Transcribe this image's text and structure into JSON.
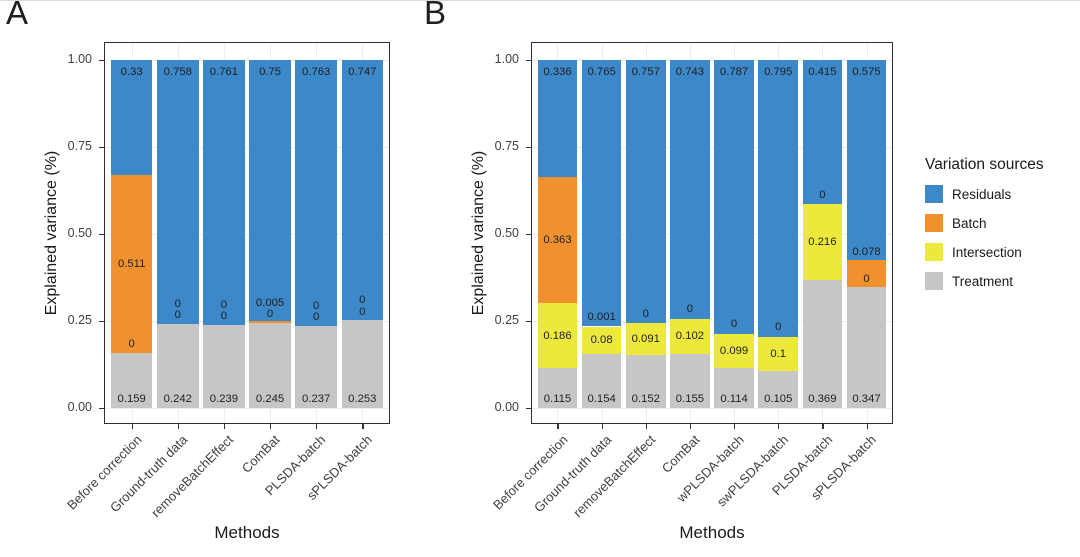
{
  "figure": {
    "legend": {
      "title": "Variation sources",
      "items": [
        {
          "label": "Residuals",
          "color": "#3D88C8"
        },
        {
          "label": "Batch",
          "color": "#F0912E"
        },
        {
          "label": "Intersection",
          "color": "#ECE93C"
        },
        {
          "label": "Treatment",
          "color": "#C6C6C6"
        }
      ]
    }
  },
  "colors": {
    "Residuals": "#3D88C8",
    "Batch": "#F0912E",
    "Intersection": "#ECE93C",
    "Treatment": "#C6C6C6",
    "panel_border": "#2e2e2e",
    "grid": "#ececec",
    "tick_text": "#404040",
    "bar_label": "#1f1f1f"
  },
  "chart_data": [
    {
      "type": "bar",
      "stacked": true,
      "panel_label": "A",
      "xlabel": "Methods",
      "ylabel": "Explained variance (%)",
      "ylim": [
        0,
        1
      ],
      "grid": true,
      "legend_position": "right",
      "yticks": [
        {
          "v": 1.0,
          "label": "1.00"
        },
        {
          "v": 0.75,
          "label": "0.75"
        },
        {
          "v": 0.5,
          "label": "0.50"
        },
        {
          "v": 0.25,
          "label": "0.25"
        },
        {
          "v": 0.0,
          "label": "0.00"
        }
      ],
      "categories": [
        "Before correction",
        "Ground-truth data",
        "removeBatchEffect",
        "ComBat",
        "PLSDA-batch",
        "sPLSDA-batch"
      ],
      "series": [
        {
          "name": "Treatment",
          "values": [
            0.159,
            0.242,
            0.239,
            0.245,
            0.237,
            0.253
          ],
          "labels": [
            "0.159",
            "0.242",
            "0.239",
            "0.245",
            "0.237",
            "0.253"
          ]
        },
        {
          "name": "Intersection",
          "values": [
            0,
            0,
            0,
            0,
            0,
            0
          ],
          "labels": [
            "0",
            "0",
            "0",
            "0",
            "0",
            "0"
          ]
        },
        {
          "name": "Batch",
          "values": [
            0.511,
            0,
            0,
            0.005,
            0,
            0
          ],
          "labels": [
            "0.511",
            "0",
            "0",
            "0.005",
            "0",
            "0"
          ]
        },
        {
          "name": "Residuals",
          "values": [
            0.33,
            0.758,
            0.761,
            0.75,
            0.763,
            0.747
          ],
          "labels": [
            "0.33",
            "0.758",
            "0.761",
            "0.75",
            "0.763",
            "0.747"
          ]
        }
      ]
    },
    {
      "type": "bar",
      "stacked": true,
      "panel_label": "B",
      "xlabel": "Methods",
      "ylabel": "Explained variance (%)",
      "ylim": [
        0,
        1
      ],
      "grid": true,
      "legend_position": "right",
      "yticks": [
        {
          "v": 1.0,
          "label": "1.00"
        },
        {
          "v": 0.75,
          "label": "0.75"
        },
        {
          "v": 0.5,
          "label": "0.50"
        },
        {
          "v": 0.25,
          "label": "0.25"
        },
        {
          "v": 0.0,
          "label": "0.00"
        }
      ],
      "categories": [
        "Before correction",
        "Ground-truth data",
        "removeBatchEffect",
        "ComBat",
        "wPLSDA-batch",
        "swPLSDA-batch",
        "PLSDA-batch",
        "sPLSDA-batch"
      ],
      "series": [
        {
          "name": "Treatment",
          "values": [
            0.115,
            0.154,
            0.152,
            0.155,
            0.114,
            0.105,
            0.369,
            0.347
          ],
          "labels": [
            "0.115",
            "0.154",
            "0.152",
            "0.155",
            "0.114",
            "0.105",
            "0.369",
            "0.347"
          ]
        },
        {
          "name": "Intersection",
          "values": [
            0.186,
            0.08,
            0.091,
            0.102,
            0.099,
            0.1,
            0.216,
            0
          ],
          "labels": [
            "0.186",
            "0.08",
            "0.091",
            "0.102",
            "0.099",
            "0.1",
            "0.216",
            "0"
          ]
        },
        {
          "name": "Batch",
          "values": [
            0.363,
            0.001,
            0,
            0,
            0,
            0,
            0,
            0.078
          ],
          "labels": [
            "0.363",
            "0.001",
            "0",
            "0",
            "0",
            "0",
            "0",
            "0.078"
          ]
        },
        {
          "name": "Residuals",
          "values": [
            0.336,
            0.765,
            0.757,
            0.743,
            0.787,
            0.795,
            0.415,
            0.575
          ],
          "labels": [
            "0.336",
            "0.765",
            "0.757",
            "0.743",
            "0.787",
            "0.795",
            "0.415",
            "0.575"
          ]
        }
      ]
    }
  ]
}
